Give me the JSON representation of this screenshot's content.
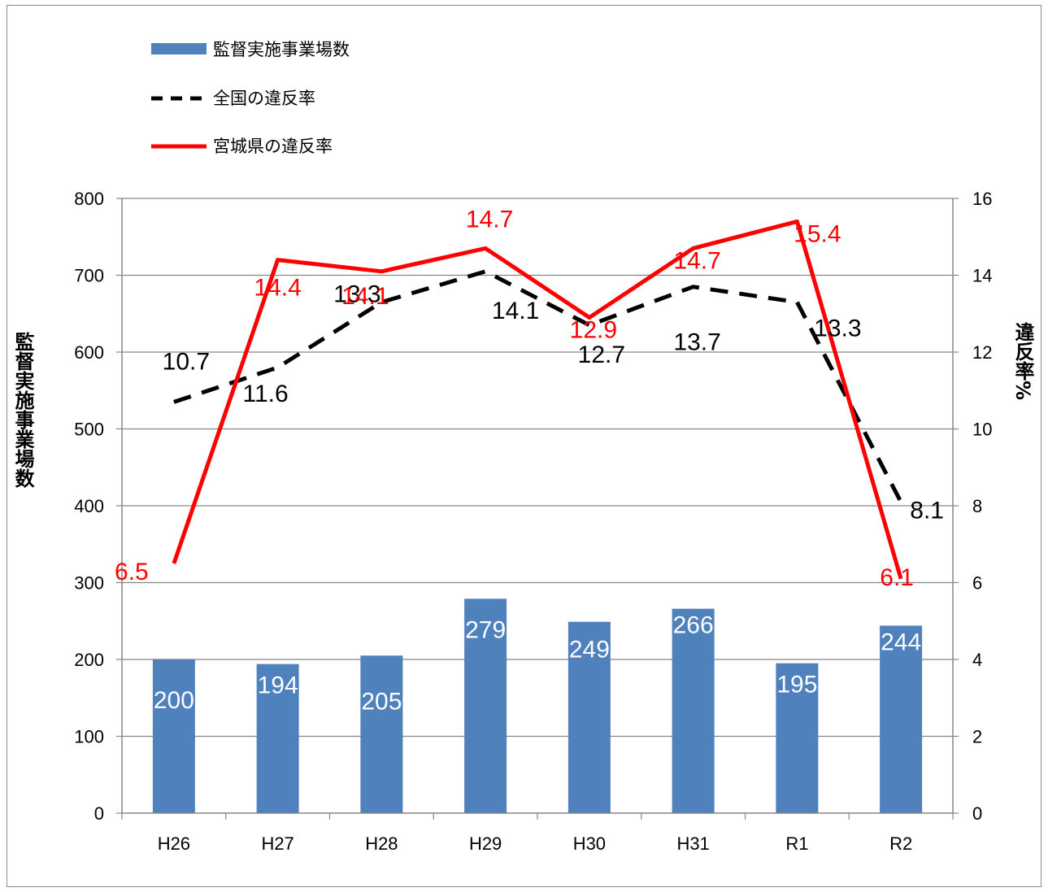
{
  "chart_data": {
    "type": "bar",
    "categories": [
      "H26",
      "H27",
      "H28",
      "H29",
      "H30",
      "H31",
      "R1",
      "R2"
    ],
    "series": [
      {
        "name": "監督実施事業場数",
        "type": "bar",
        "axis": "left",
        "color": "#4F81BD",
        "values": [
          200,
          194,
          205,
          279,
          249,
          266,
          195,
          244
        ],
        "labels": [
          "200",
          "194",
          "205",
          "279",
          "249",
          "266",
          "195",
          "244"
        ]
      },
      {
        "name": "全国の違反率",
        "type": "line",
        "style": "dashed",
        "axis": "right",
        "color": "#000000",
        "values": [
          10.7,
          11.6,
          13.3,
          14.1,
          12.7,
          13.7,
          13.3,
          8.1
        ],
        "labels": [
          "10.7",
          "11.6",
          "13.3",
          "14.1",
          "12.7",
          "13.7",
          "13.3",
          "8.1"
        ]
      },
      {
        "name": "宮城県の違反率",
        "type": "line",
        "style": "solid",
        "axis": "right",
        "color": "#FF0000",
        "values": [
          6.5,
          14.4,
          14.1,
          14.7,
          12.9,
          14.7,
          15.4,
          6.1
        ],
        "labels": [
          "6.5",
          "14.4",
          "14.1",
          "14.7",
          "12.9",
          "14.7",
          "15.4",
          "6.1"
        ]
      }
    ],
    "ylabel": "監督実施事業場数",
    "y2label": "違反率%",
    "ylim": [
      0,
      800
    ],
    "y2lim": [
      0,
      16
    ],
    "yticks": [
      "0",
      "100",
      "200",
      "300",
      "400",
      "500",
      "600",
      "700",
      "800"
    ],
    "y2ticks": [
      "0",
      "2",
      "4",
      "6",
      "8",
      "10",
      "12",
      "14",
      "16"
    ],
    "grid": true,
    "legend_position": "top-left"
  }
}
